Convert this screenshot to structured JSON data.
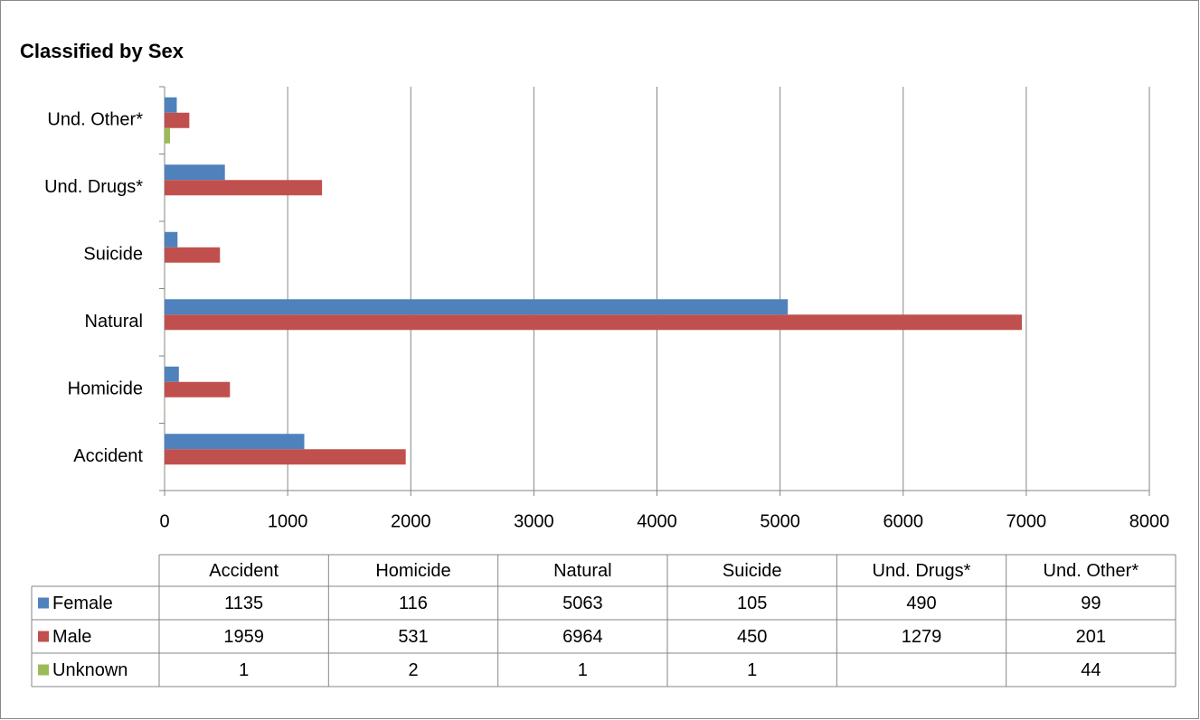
{
  "chart_data": {
    "type": "hbar",
    "title": "Classified by Sex",
    "categories": [
      "Accident",
      "Homicide",
      "Natural",
      "Suicide",
      "Und. Drugs*",
      "Und. Other*"
    ],
    "series": [
      {
        "name": "Female",
        "color": "#4f81bd",
        "values": [
          1135,
          116,
          5063,
          105,
          490,
          99
        ]
      },
      {
        "name": "Male",
        "color": "#c0504d",
        "values": [
          1959,
          531,
          6964,
          450,
          1279,
          201
        ]
      },
      {
        "name": "Unknown",
        "color": "#9bbb59",
        "values": [
          1,
          2,
          1,
          1,
          null,
          44
        ]
      }
    ],
    "xlim": [
      0,
      8000
    ],
    "xticks": [
      0,
      1000,
      2000,
      3000,
      4000,
      5000,
      6000,
      7000,
      8000
    ],
    "grid": true,
    "data_table": true
  }
}
